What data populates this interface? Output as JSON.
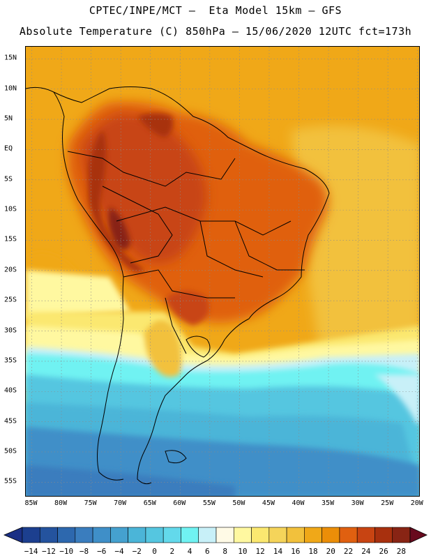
{
  "title_line1": "CPTEC/INPE/MCT –  Eta Model 15km – GFS",
  "title_line2": "Absolute Temperature (C) 850hPa – 15/06/2020 12UTC fct=173h",
  "map": {
    "lat_labels": [
      "15N",
      "10N",
      "5N",
      "EQ",
      "5S",
      "10S",
      "15S",
      "20S",
      "25S",
      "30S",
      "35S",
      "40S",
      "45S",
      "50S",
      "55S"
    ],
    "lat_values": [
      15,
      10,
      5,
      0,
      -5,
      -10,
      -15,
      -20,
      -25,
      -30,
      -35,
      -40,
      -45,
      -50,
      -55
    ],
    "lon_labels": [
      "85W",
      "80W",
      "75W",
      "70W",
      "65W",
      "60W",
      "55W",
      "50W",
      "45W",
      "40W",
      "35W",
      "30W",
      "25W",
      "20W"
    ],
    "lon_values": [
      -85,
      -80,
      -75,
      -70,
      -65,
      -60,
      -55,
      -50,
      -45,
      -40,
      -35,
      -30,
      -25,
      -20
    ],
    "lat_range": [
      -57.5,
      17
    ],
    "lon_range": [
      -86,
      -19.5
    ],
    "grid": "dotted"
  },
  "colorbar": {
    "labels": [
      "-14",
      "-12",
      "-10",
      "-8",
      "-6",
      "-4",
      "-2",
      "0",
      "2",
      "4",
      "6",
      "8",
      "10",
      "12",
      "14",
      "16",
      "18",
      "20",
      "22",
      "24",
      "26",
      "28"
    ],
    "colors": [
      "#1c3f8f",
      "#24539e",
      "#2d68ae",
      "#3a7dbe",
      "#3f8fc8",
      "#45a1cf",
      "#4bb5d8",
      "#55c6e0",
      "#63d9eb",
      "#70f2f2",
      "#c8f0f8",
      "#fffae6",
      "#fff8a0",
      "#fbe870",
      "#f5d45a",
      "#f2c13c",
      "#f0a818",
      "#eb8e08",
      "#e06010",
      "#c84412",
      "#a8300e",
      "#882414"
    ],
    "over_color": "#680a1e",
    "under_color": "#1a2f85"
  }
}
